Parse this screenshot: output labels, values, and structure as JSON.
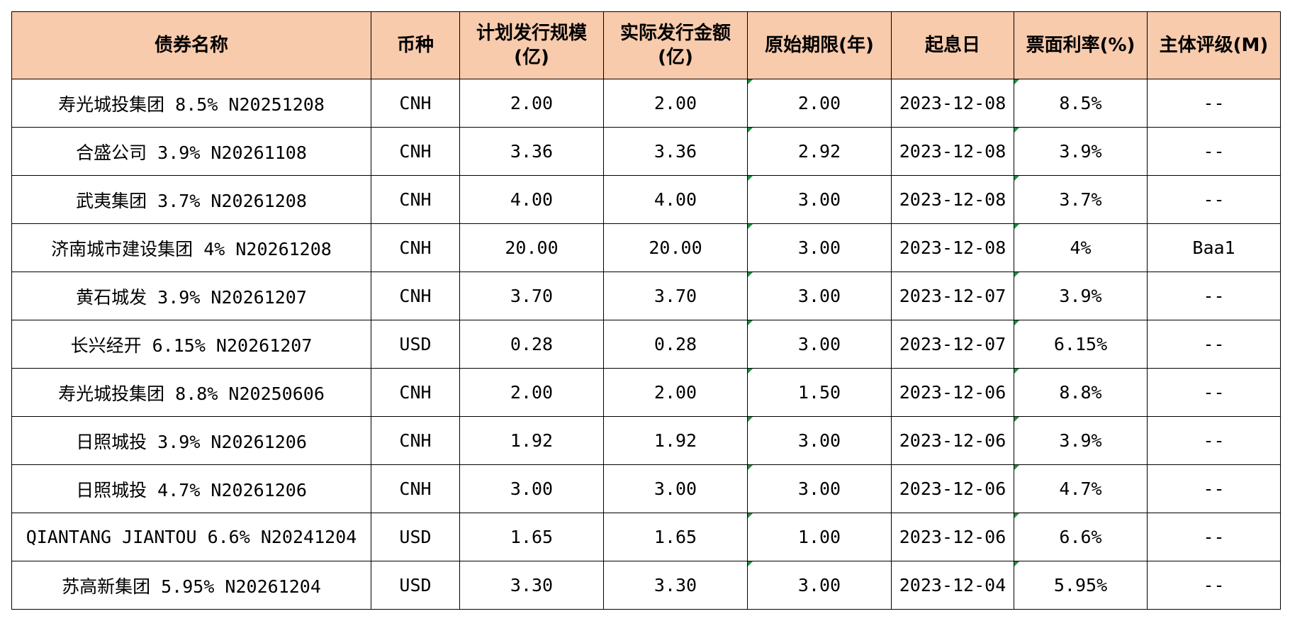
{
  "table": {
    "headers": [
      {
        "line1": "债券名称",
        "line2": ""
      },
      {
        "line1": "币种",
        "line2": ""
      },
      {
        "line1": "计划发行规模",
        "line2": "(亿)"
      },
      {
        "line1": "实际发行金额",
        "line2": "(亿)"
      },
      {
        "line1": "原始期限(年)",
        "line2": ""
      },
      {
        "line1": "起息日",
        "line2": ""
      },
      {
        "line1": "票面利率(%)",
        "line2": ""
      },
      {
        "line1": "主体评级(M)",
        "line2": ""
      }
    ],
    "rows": [
      [
        "寿光城投集团 8.5% N20251208",
        "CNH",
        "2.00",
        "2.00",
        "2.00",
        "2023-12-08",
        "8.5%",
        "--"
      ],
      [
        "合盛公司 3.9% N20261108",
        "CNH",
        "3.36",
        "3.36",
        "2.92",
        "2023-12-08",
        "3.9%",
        "--"
      ],
      [
        "武夷集团 3.7% N20261208",
        "CNH",
        "4.00",
        "4.00",
        "3.00",
        "2023-12-08",
        "3.7%",
        "--"
      ],
      [
        "济南城市建设集团 4% N20261208",
        "CNH",
        "20.00",
        "20.00",
        "3.00",
        "2023-12-08",
        "4%",
        "Baa1"
      ],
      [
        "黄石城发 3.9% N20261207",
        "CNH",
        "3.70",
        "3.70",
        "3.00",
        "2023-12-07",
        "3.9%",
        "--"
      ],
      [
        "长兴经开 6.15% N20261207",
        "USD",
        "0.28",
        "0.28",
        "3.00",
        "2023-12-07",
        "6.15%",
        "--"
      ],
      [
        "寿光城投集团 8.8% N20250606",
        "CNH",
        "2.00",
        "2.00",
        "1.50",
        "2023-12-06",
        "8.8%",
        "--"
      ],
      [
        "日照城投 3.9% N20261206",
        "CNH",
        "1.92",
        "1.92",
        "3.00",
        "2023-12-06",
        "3.9%",
        "--"
      ],
      [
        "日照城投 4.7% N20261206",
        "CNH",
        "3.00",
        "3.00",
        "3.00",
        "2023-12-06",
        "4.7%",
        "--"
      ],
      [
        "QIANTANG JIANTOU 6.6% N20241204",
        "USD",
        "1.65",
        "1.65",
        "1.00",
        "2023-12-06",
        "6.6%",
        "--"
      ],
      [
        "苏高新集团 5.95% N20261204",
        "USD",
        "3.30",
        "3.30",
        "3.00",
        "2023-12-04",
        "5.95%",
        "--"
      ]
    ]
  },
  "colors": {
    "header_bg": "#F8CBAD",
    "grid": "#000000",
    "marker": "#1E8E3E"
  }
}
